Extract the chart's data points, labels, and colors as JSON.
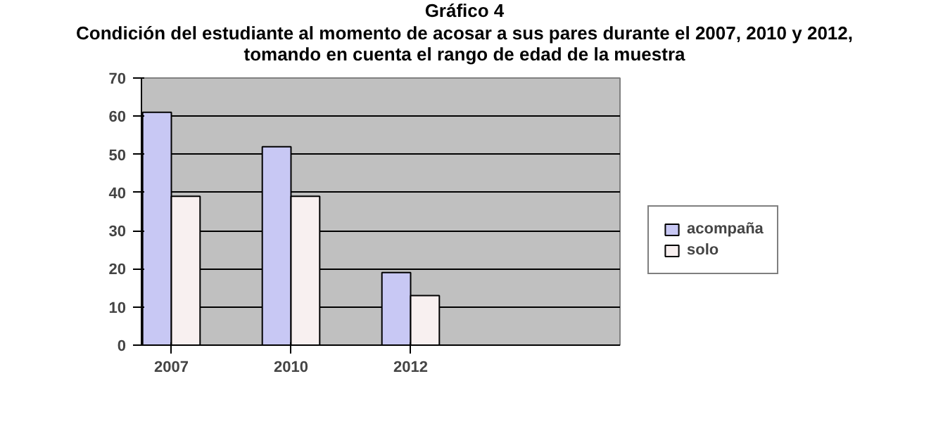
{
  "chart_data": {
    "type": "bar",
    "title": "Gráfico 4",
    "subtitle": "Condición del estudiante al momento de acosar a sus pares durante el 2007, 2010 y 2012,\ntomando en cuenta el rango de edad de la muestra",
    "categories": [
      "2007",
      "2010",
      "2012",
      null
    ],
    "series": [
      {
        "name": "acompaña",
        "color": "#c8c8f4",
        "values": [
          61,
          52,
          19,
          null
        ]
      },
      {
        "name": "solo",
        "color": "#f8f0f0",
        "values": [
          39,
          39,
          13,
          null
        ]
      }
    ],
    "ylim": [
      0,
      70
    ],
    "yticks": [
      0,
      10,
      20,
      30,
      40,
      50,
      60,
      70
    ],
    "grid": "y",
    "legend": "right"
  }
}
